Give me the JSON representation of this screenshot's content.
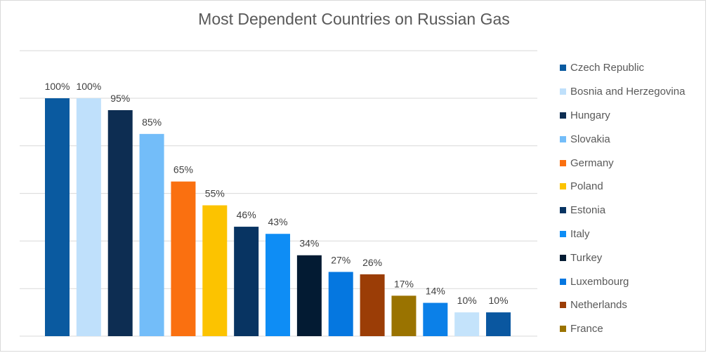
{
  "chart_data": {
    "type": "bar",
    "title": "Most Dependent Countries on Russian Gas",
    "xlabel": "",
    "ylabel": "",
    "ylim": [
      0,
      120
    ],
    "grid": true,
    "legend_position": "right",
    "categories": [
      "Czech Republic",
      "Bosnia and Herzegovina",
      "Hungary",
      "Slovakia",
      "Germany",
      "Poland",
      "Estonia",
      "Italy",
      "Turkey",
      "Luxembourg",
      "Netherlands",
      "France",
      "",
      "",
      ""
    ],
    "values": [
      100,
      100,
      95,
      85,
      65,
      55,
      46,
      43,
      34,
      27,
      26,
      17,
      14,
      10,
      10
    ],
    "data_labels": [
      "100%",
      "100%",
      "95%",
      "85%",
      "65%",
      "55%",
      "46%",
      "43%",
      "34%",
      "27%",
      "26%",
      "17%",
      "14%",
      "10%",
      "10%"
    ],
    "colors": [
      "#0a5aa0",
      "#bfe0fb",
      "#0d2d52",
      "#73bdf9",
      "#fa7010",
      "#fcc300",
      "#083462",
      "#0e8df5",
      "#031b33",
      "#0577e0",
      "#9b3d06",
      "#9a7300",
      "#0b80e8",
      "#c4e3fb",
      "#0a57a0"
    ],
    "legend_entries": [
      "Czech Republic",
      "Bosnia and Herzegovina",
      "Hungary",
      "Slovakia",
      "Germany",
      "Poland",
      "Estonia",
      "Italy",
      "Turkey",
      "Luxembourg",
      "Netherlands",
      "France"
    ]
  }
}
